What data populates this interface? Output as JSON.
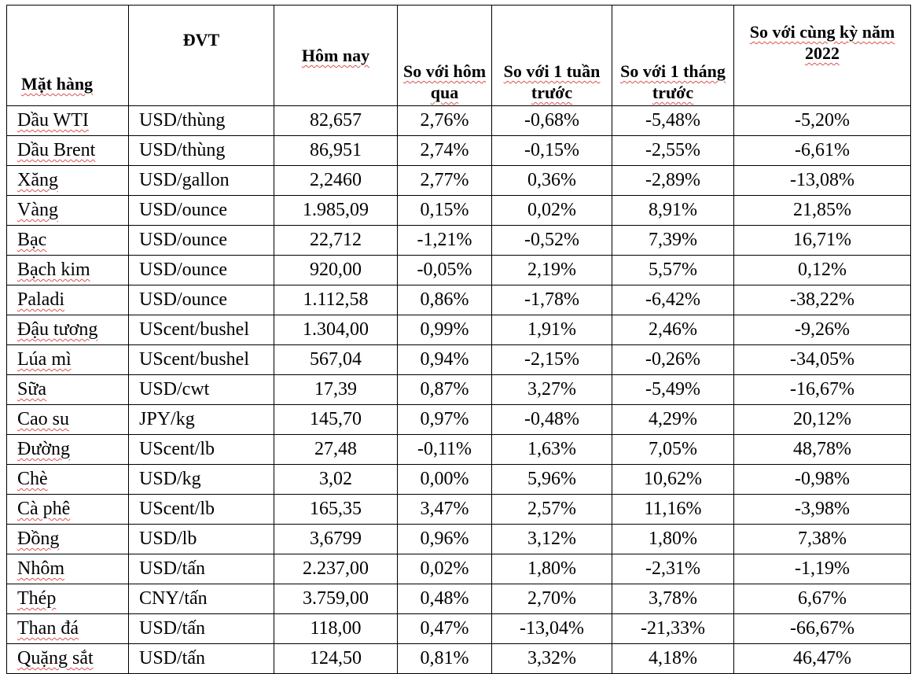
{
  "headers": {
    "item": "Mặt hàng",
    "unit": "ĐVT",
    "today": "Hôm nay",
    "vs_yesterday": "So với hôm qua",
    "vs_week": "So với 1 tuần trước",
    "vs_month": "So với 1 tháng trước",
    "vs_year": "So với cùng kỳ năm 2022"
  },
  "rows": [
    {
      "item": "Dầu WTI",
      "unit": "USD/thùng",
      "today": "82,657",
      "vs_yesterday": "2,76%",
      "vs_week": "-0,68%",
      "vs_month": "-5,48%",
      "vs_year": "-5,20%"
    },
    {
      "item": "Dầu Brent",
      "unit": "USD/thùng",
      "today": "86,951",
      "vs_yesterday": "2,74%",
      "vs_week": "-0,15%",
      "vs_month": "-2,55%",
      "vs_year": "-6,61%"
    },
    {
      "item": "Xăng",
      "unit": "USD/gallon",
      "today": "2,2460",
      "vs_yesterday": "2,77%",
      "vs_week": "0,36%",
      "vs_month": "-2,89%",
      "vs_year": "-13,08%"
    },
    {
      "item": "Vàng",
      "unit": "USD/ounce",
      "today": "1.985,09",
      "vs_yesterday": "0,15%",
      "vs_week": "0,02%",
      "vs_month": "8,91%",
      "vs_year": "21,85%"
    },
    {
      "item": "Bạc",
      "unit": "USD/ounce",
      "today": "22,712",
      "vs_yesterday": "-1,21%",
      "vs_week": "-0,52%",
      "vs_month": "7,39%",
      "vs_year": "16,71%"
    },
    {
      "item": "Bạch kim",
      "unit": "USD/ounce",
      "today": "920,00",
      "vs_yesterday": "-0,05%",
      "vs_week": "2,19%",
      "vs_month": "5,57%",
      "vs_year": "0,12%"
    },
    {
      "item": "Paladi",
      "unit": "USD/ounce",
      "today": "1.112,58",
      "vs_yesterday": "0,86%",
      "vs_week": "-1,78%",
      "vs_month": "-6,42%",
      "vs_year": "-38,22%"
    },
    {
      "item": "Đậu tương",
      "unit": "UScent/bushel",
      "today": "1.304,00",
      "vs_yesterday": "0,99%",
      "vs_week": "1,91%",
      "vs_month": "2,46%",
      "vs_year": "-9,26%"
    },
    {
      "item": "Lúa mì",
      "unit": "UScent/bushel",
      "today": "567,04",
      "vs_yesterday": "0,94%",
      "vs_week": "-2,15%",
      "vs_month": "-0,26%",
      "vs_year": "-34,05%"
    },
    {
      "item": "Sữa",
      "unit": "USD/cwt",
      "today": "17,39",
      "vs_yesterday": "0,87%",
      "vs_week": "3,27%",
      "vs_month": "-5,49%",
      "vs_year": "-16,67%"
    },
    {
      "item": "Cao su",
      "unit": "JPY/kg",
      "today": "145,70",
      "vs_yesterday": "0,97%",
      "vs_week": "-0,48%",
      "vs_month": "4,29%",
      "vs_year": "20,12%"
    },
    {
      "item": "Đường",
      "unit": "UScent/lb",
      "today": "27,48",
      "vs_yesterday": "-0,11%",
      "vs_week": "1,63%",
      "vs_month": "7,05%",
      "vs_year": "48,78%"
    },
    {
      "item": "Chè",
      "unit": "USD/kg",
      "today": "3,02",
      "vs_yesterday": "0,00%",
      "vs_week": "5,96%",
      "vs_month": "10,62%",
      "vs_year": "-0,98%"
    },
    {
      "item": "Cà phê",
      "unit": "UScent/lb",
      "today": "165,35",
      "vs_yesterday": "3,47%",
      "vs_week": "2,57%",
      "vs_month": "11,16%",
      "vs_year": "-3,98%"
    },
    {
      "item": "Đồng",
      "unit": "USD/lb",
      "today": "3,6799",
      "vs_yesterday": "0,96%",
      "vs_week": "3,12%",
      "vs_month": "1,80%",
      "vs_year": "7,38%"
    },
    {
      "item": "Nhôm",
      "unit": "USD/tấn",
      "today": "2.237,00",
      "vs_yesterday": "0,02%",
      "vs_week": "1,80%",
      "vs_month": "-2,31%",
      "vs_year": "-1,19%"
    },
    {
      "item": "Thép",
      "unit": "CNY/tấn",
      "today": "3.759,00",
      "vs_yesterday": "0,48%",
      "vs_week": "2,70%",
      "vs_month": "3,78%",
      "vs_year": "6,67%"
    },
    {
      "item": "Than đá",
      "unit": "USD/tấn",
      "today": "118,00",
      "vs_yesterday": "0,47%",
      "vs_week": "-13,04%",
      "vs_month": "-21,33%",
      "vs_year": "-66,67%"
    },
    {
      "item": "Quặng sắt",
      "unit": "USD/tấn",
      "today": "124,50",
      "vs_yesterday": "0,81%",
      "vs_week": "3,32%",
      "vs_month": "4,18%",
      "vs_year": "46,47%"
    }
  ]
}
